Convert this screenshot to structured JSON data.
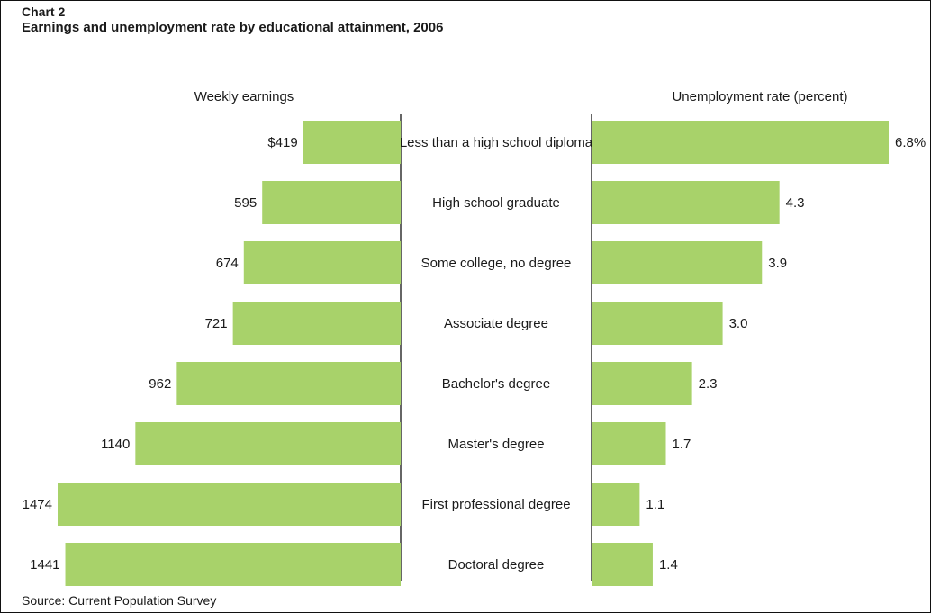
{
  "header": {
    "label": "Chart 2",
    "title": "Earnings and unemployment rate by educational attainment, 2006"
  },
  "source": "Source: Current Population Survey",
  "colors": {
    "bar": "#a8d26a",
    "axis": "#333333",
    "border": "#111111"
  },
  "chart_data": [
    {
      "type": "bar",
      "orientation": "horizontal",
      "direction": "right-to-left",
      "title": "Weekly earnings",
      "categories": [
        "Less than a high school diploma",
        "High school graduate",
        "Some college, no degree",
        "Associate degree",
        "Bachelor's degree",
        "Master's degree",
        "First professional degree",
        "Doctoral degree"
      ],
      "values": [
        419,
        595,
        674,
        721,
        962,
        1140,
        1474,
        1441
      ],
      "value_labels": [
        "$419",
        "595",
        "674",
        "721",
        "962",
        "1140",
        "1474",
        "1441"
      ],
      "xlim": [
        0,
        1474
      ],
      "grid": false,
      "legend": "none"
    },
    {
      "type": "bar",
      "orientation": "horizontal",
      "direction": "left-to-right",
      "title": "Unemployment rate (percent)",
      "categories": [
        "Less than a high school diploma",
        "High school graduate",
        "Some college, no degree",
        "Associate degree",
        "Bachelor's degree",
        "Master's degree",
        "First professional degree",
        "Doctoral degree"
      ],
      "values": [
        6.8,
        4.3,
        3.9,
        3.0,
        2.3,
        1.7,
        1.1,
        1.4
      ],
      "value_labels": [
        "6.8%",
        "4.3",
        "3.9",
        "3.0",
        "2.3",
        "1.7",
        "1.1",
        "1.4"
      ],
      "xlim": [
        0,
        6.8
      ],
      "grid": false,
      "legend": "none"
    }
  ]
}
